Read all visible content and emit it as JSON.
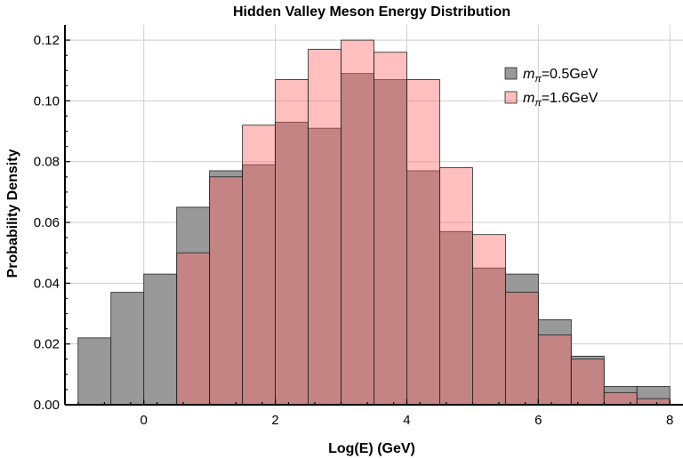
{
  "chart_data": {
    "type": "bar",
    "title": "Hidden Valley Meson Energy Distribution",
    "xlabel": "Log(E) (GeV)",
    "ylabel": "Probability Density",
    "xlim": [
      -1.2,
      8.2
    ],
    "ylim": [
      0,
      0.125
    ],
    "xticks": [
      0,
      2,
      4,
      6,
      8
    ],
    "yticks": [
      0.0,
      0.02,
      0.04,
      0.06,
      0.08,
      0.1,
      0.12
    ],
    "ytick_labels": [
      "0.00",
      "0.02",
      "0.04",
      "0.06",
      "0.08",
      "0.10",
      "0.12"
    ],
    "bin_edges": [
      -1.0,
      -0.5,
      0.0,
      0.5,
      1.0,
      1.5,
      2.0,
      2.5,
      3.0,
      3.5,
      4.0,
      4.5,
      5.0,
      5.5,
      6.0,
      6.5,
      7.0,
      7.5,
      8.0
    ],
    "legend_position": "top-right",
    "series": [
      {
        "name": "m_π=0.5GeV",
        "legend_symbol": "m",
        "legend_subscript": "π",
        "legend_suffix": "=0.5GeV",
        "color": "#999999",
        "values": [
          0.022,
          0.037,
          0.043,
          0.065,
          0.077,
          0.079,
          0.093,
          0.091,
          0.109,
          0.107,
          0.077,
          0.057,
          0.045,
          0.043,
          0.028,
          0.016,
          0.006,
          0.006
        ]
      },
      {
        "name": "m_π=1.6GeV",
        "legend_symbol": "m",
        "legend_subscript": "π",
        "legend_suffix": "=1.6GeV",
        "color": "#ff6666",
        "values": [
          0,
          0,
          0,
          0.05,
          0.075,
          0.092,
          0.107,
          0.117,
          0.12,
          0.116,
          0.107,
          0.078,
          0.056,
          0.037,
          0.023,
          0.015,
          0.004,
          0.002
        ]
      }
    ]
  }
}
